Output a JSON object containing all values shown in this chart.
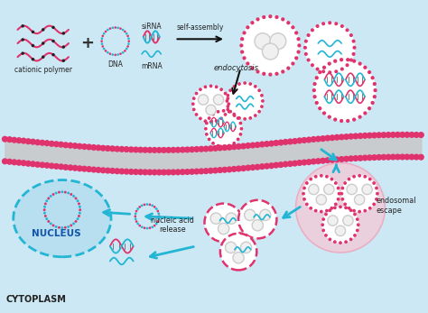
{
  "background_color": "#cce8f4",
  "pink": "#e0336e",
  "blue_dna": "#22b5d4",
  "red_dna": "#e0336e",
  "gray_dot": "#a0a0b8",
  "nucleus_fill": "#b8dff0",
  "nucleus_border": "#22b5d4",
  "arrow_color": "#22b5d4",
  "black_arrow": "#111111",
  "membrane_gray": "#c8c8c8",
  "labels": {
    "cationic_polymer": "cationic polymer",
    "dna": "DNA",
    "mrna": "mRNA",
    "sirna": "siRNA",
    "self_assembly": "self-assembly",
    "endocytosis": "endocytosis",
    "nucleus": "NUCLEUS",
    "cytoplasm": "CYTOPLASM",
    "nucleic_acid": "nucleic acid\nrelease",
    "endosomal": "endosomal\nescape"
  }
}
